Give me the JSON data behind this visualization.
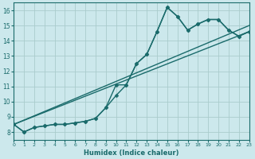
{
  "xlabel": "Humidex (Indice chaleur)",
  "background_color": "#cce8ec",
  "grid_color": "#aacccc",
  "line_color": "#1a6b6b",
  "x_min": 0,
  "x_max": 23,
  "y_min": 7.5,
  "y_max": 16.5,
  "yticks": [
    8,
    9,
    10,
    11,
    12,
    13,
    14,
    15,
    16
  ],
  "xticks": [
    0,
    1,
    2,
    3,
    4,
    5,
    6,
    7,
    8,
    9,
    10,
    11,
    12,
    13,
    14,
    15,
    16,
    17,
    18,
    19,
    20,
    21,
    22,
    23
  ],
  "line1_x": [
    0,
    1,
    2,
    3,
    4,
    5,
    6,
    7,
    8,
    9,
    10,
    11,
    12,
    13,
    14,
    15,
    16,
    17,
    18,
    19,
    20,
    21,
    22,
    23
  ],
  "line1_y": [
    8.5,
    8.0,
    8.3,
    8.4,
    8.5,
    8.5,
    8.6,
    8.7,
    8.9,
    9.6,
    10.4,
    11.1,
    12.5,
    13.1,
    14.6,
    16.2,
    15.6,
    14.7,
    15.1,
    15.4,
    15.4,
    14.7,
    14.3,
    14.6
  ],
  "line2_x": [
    0,
    1,
    2,
    3,
    4,
    5,
    6,
    7,
    8,
    9,
    10,
    11,
    12,
    13,
    14,
    15,
    16,
    17,
    18,
    19,
    20,
    21,
    22,
    23
  ],
  "line2_y": [
    8.5,
    8.0,
    8.3,
    8.4,
    8.5,
    8.5,
    8.6,
    8.7,
    8.9,
    9.6,
    11.1,
    11.1,
    12.5,
    13.1,
    14.6,
    16.2,
    15.6,
    14.7,
    15.1,
    15.4,
    15.4,
    14.7,
    14.3,
    14.6
  ],
  "line3_x": [
    0,
    23
  ],
  "line3_y": [
    8.5,
    15.0
  ],
  "line4_x": [
    0,
    23
  ],
  "line4_y": [
    8.5,
    14.6
  ],
  "marker_size": 2.5,
  "line_width": 1.0
}
